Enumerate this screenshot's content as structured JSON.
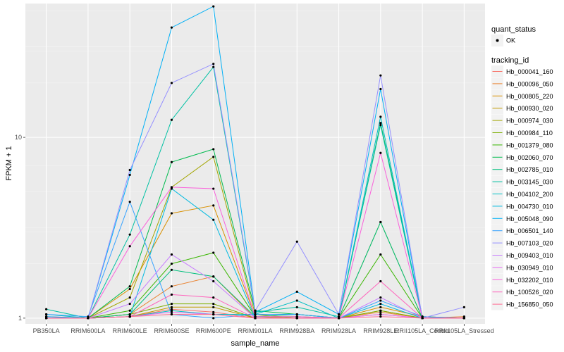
{
  "chart_data": {
    "type": "line",
    "xlabel": "sample_name",
    "ylabel": "FPKM + 1",
    "y_scale": "log10",
    "ylim": [
      0.93,
      55
    ],
    "y_ticks": [
      1,
      10
    ],
    "y_tick_labels": [
      "1",
      "10"
    ],
    "grid": true,
    "categories": [
      "PB350LA",
      "RRIM600LA",
      "RRIM600LE",
      "RRIM600SE",
      "RRIM600PE",
      "RRIM901LA",
      "RRIM928BA",
      "RRIM928LA",
      "RRIM928LE",
      "RRII105LA_Control",
      "RRII105LA_Stressed"
    ],
    "legend_quant": {
      "title": "quant_status",
      "items": [
        "OK"
      ]
    },
    "legend_series_title": "tracking_id",
    "series": [
      {
        "name": "Hb_000041_160",
        "color": "#F8766D",
        "values": [
          1.02,
          1.0,
          1.02,
          1.12,
          1.08,
          1.0,
          1.0,
          1.0,
          1.05,
          1.0,
          1.0
        ]
      },
      {
        "name": "Hb_000096_050",
        "color": "#EA8331",
        "values": [
          1.0,
          1.0,
          1.05,
          1.5,
          1.7,
          1.0,
          1.0,
          1.0,
          1.08,
          1.0,
          1.02
        ]
      },
      {
        "name": "Hb_000805_220",
        "color": "#D89000",
        "values": [
          1.0,
          1.0,
          1.45,
          3.8,
          4.2,
          1.02,
          1.0,
          1.0,
          1.15,
          1.02,
          1.0
        ]
      },
      {
        "name": "Hb_000930_020",
        "color": "#C09B00",
        "values": [
          1.0,
          1.0,
          1.02,
          1.15,
          1.15,
          1.0,
          1.0,
          1.0,
          1.1,
          1.0,
          1.0
        ]
      },
      {
        "name": "Hb_000974_030",
        "color": "#A3A500",
        "values": [
          1.0,
          1.0,
          1.3,
          5.3,
          7.8,
          1.05,
          1.0,
          1.0,
          3.4,
          1.0,
          1.0
        ]
      },
      {
        "name": "Hb_000984_110",
        "color": "#7CAE00",
        "values": [
          1.0,
          1.0,
          1.05,
          1.2,
          1.2,
          1.0,
          1.0,
          1.0,
          1.1,
          1.0,
          1.0
        ]
      },
      {
        "name": "Hb_001379_080",
        "color": "#39B600",
        "values": [
          1.0,
          1.0,
          1.1,
          2.0,
          2.3,
          1.02,
          1.02,
          1.0,
          2.25,
          1.0,
          1.0
        ]
      },
      {
        "name": "Hb_002060_070",
        "color": "#00BB4E",
        "values": [
          1.0,
          1.0,
          1.5,
          7.3,
          8.6,
          1.1,
          1.05,
          1.0,
          12.0,
          1.02,
          1.0
        ]
      },
      {
        "name": "Hb_002785_010",
        "color": "#00BF7D",
        "values": [
          1.0,
          1.0,
          1.05,
          1.85,
          1.7,
          1.02,
          1.05,
          1.0,
          3.4,
          1.0,
          1.0
        ]
      },
      {
        "name": "Hb_003145_030",
        "color": "#00C1A3",
        "values": [
          1.12,
          1.0,
          2.9,
          12.5,
          24.5,
          1.08,
          1.15,
          1.02,
          11.7,
          1.0,
          1.0
        ]
      },
      {
        "name": "Hb_004102_200",
        "color": "#00BFC4",
        "values": [
          1.05,
          1.0,
          1.02,
          1.1,
          1.05,
          1.05,
          1.25,
          1.0,
          13.0,
          1.0,
          1.0
        ]
      },
      {
        "name": "Hb_004730_010",
        "color": "#00BAE0",
        "values": [
          1.0,
          1.0,
          1.02,
          5.2,
          3.5,
          1.0,
          1.0,
          1.0,
          1.2,
          1.0,
          1.0
        ]
      },
      {
        "name": "Hb_005048_090",
        "color": "#00B0F6",
        "values": [
          1.02,
          1.0,
          6.2,
          40.5,
          53.0,
          1.08,
          1.4,
          1.05,
          18.5,
          1.0,
          1.0
        ]
      },
      {
        "name": "Hb_006501_140",
        "color": "#35A2FF",
        "values": [
          1.05,
          1.02,
          4.4,
          1.05,
          1.0,
          1.05,
          1.05,
          1.0,
          1.25,
          1.02,
          1.0
        ]
      },
      {
        "name": "Hb_007103_020",
        "color": "#9590FF",
        "values": [
          1.0,
          1.0,
          6.6,
          20.0,
          25.5,
          1.1,
          2.65,
          1.05,
          22.0,
          1.0,
          1.15
        ]
      },
      {
        "name": "Hb_009403_010",
        "color": "#C77CFF",
        "values": [
          1.0,
          1.0,
          1.2,
          2.25,
          1.6,
          1.0,
          1.0,
          1.0,
          1.3,
          1.0,
          1.0
        ]
      },
      {
        "name": "Hb_030949_010",
        "color": "#E76BF3",
        "values": [
          1.0,
          1.0,
          1.02,
          1.08,
          1.05,
          1.0,
          1.0,
          1.0,
          1.05,
          1.0,
          1.0
        ]
      },
      {
        "name": "Hb_032202_010",
        "color": "#FA62DB",
        "values": [
          1.0,
          1.0,
          2.5,
          5.3,
          5.2,
          1.02,
          1.02,
          1.0,
          8.2,
          1.0,
          1.0
        ]
      },
      {
        "name": "Hb_100526_020",
        "color": "#FF62BC",
        "values": [
          1.0,
          1.0,
          1.02,
          1.35,
          1.3,
          1.0,
          1.0,
          1.0,
          1.6,
          1.0,
          1.0
        ]
      },
      {
        "name": "Hb_156850_050",
        "color": "#FF6C91",
        "values": [
          1.0,
          1.0,
          1.02,
          1.05,
          1.05,
          1.0,
          1.0,
          1.0,
          1.02,
          1.0,
          1.0
        ]
      }
    ]
  }
}
